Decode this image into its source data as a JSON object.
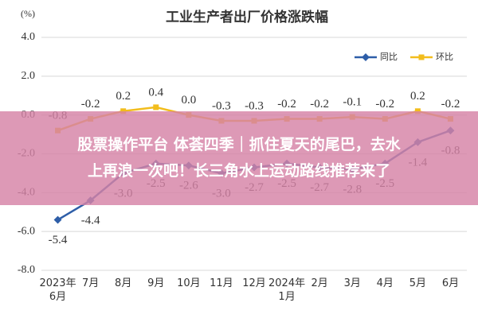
{
  "chart_data": {
    "type": "line",
    "title": "工业生产者出厂价格涨跌幅",
    "y_label": "(%)",
    "categories": [
      "2023年\n6月",
      "7月",
      "8月",
      "9月",
      "10月",
      "11月",
      "12月",
      "2024年\n1月",
      "2月",
      "3月",
      "4月",
      "5月",
      "6月"
    ],
    "series": [
      {
        "name": "同比",
        "color": "#2e5ea8",
        "values": [
          -5.4,
          -4.4,
          -3.0,
          -2.5,
          -2.6,
          -3.0,
          -2.7,
          -2.5,
          -2.7,
          -2.8,
          -2.5,
          -1.4,
          -0.8
        ],
        "value_labels": [
          "-5.4",
          "-4.4",
          "-3.0",
          "-2.5",
          "-2.6",
          "-3.0",
          "-2.7",
          "-2.5",
          "-2.7",
          "-2.8",
          "-2.5",
          "-1.4",
          "-0.8"
        ]
      },
      {
        "name": "环比",
        "color": "#f2bd1d",
        "values": [
          -0.8,
          -0.2,
          0.2,
          0.4,
          0.0,
          -0.3,
          -0.3,
          -0.2,
          -0.2,
          -0.1,
          -0.2,
          0.2,
          -0.2
        ],
        "value_labels": [
          "-0.8",
          "-0.2",
          "0.2",
          "0.4",
          "0.0",
          "-0.3",
          "-0.3",
          "-0.2",
          "-0.2",
          "-0.1",
          "-0.2",
          "0.2",
          "-0.2"
        ]
      }
    ],
    "ylim": [
      -8,
      4
    ],
    "yticks": [
      {
        "value": 4,
        "label": "4.0"
      },
      {
        "value": 2,
        "label": "2.0"
      },
      {
        "value": 0,
        "label": "0.0"
      },
      {
        "value": -2,
        "label": "-2.0"
      },
      {
        "value": -4,
        "label": "-4.0"
      },
      {
        "value": -6,
        "label": "-6.0"
      },
      {
        "value": -8,
        "label": "-8.0"
      }
    ],
    "grid": true,
    "legend": "upper right"
  },
  "overlay": {
    "lines": [
      "股票操作平台 体荟四季｜抓住夏天的尾巴，去水",
      "上再浪一次吧！长三角水上运动路线推荐来了"
    ]
  }
}
